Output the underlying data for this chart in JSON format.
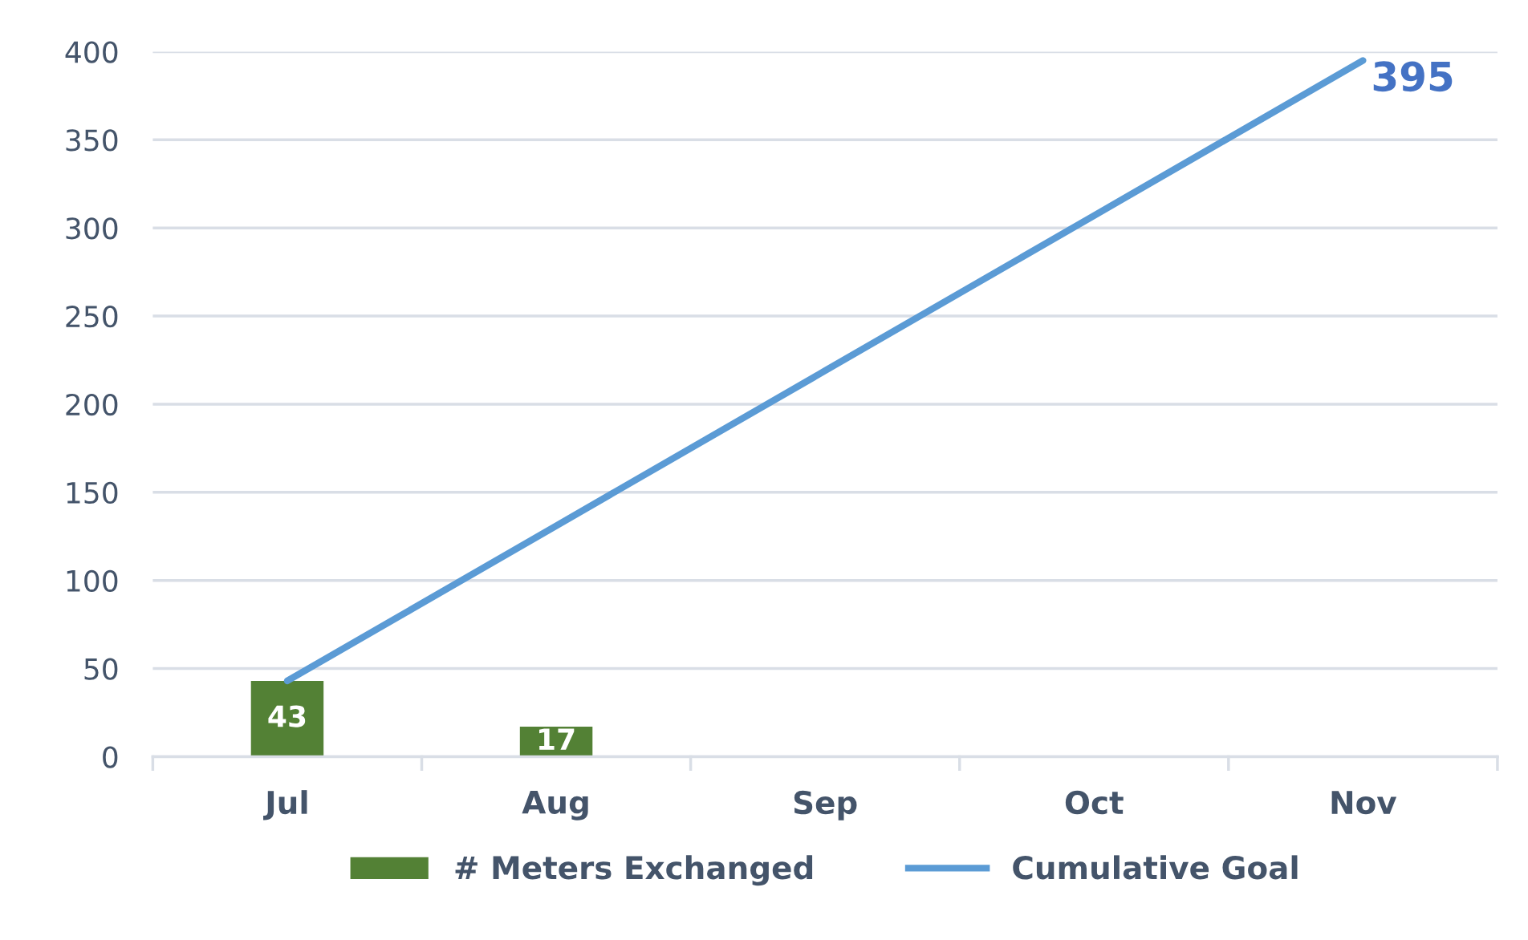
{
  "chart_data": {
    "type": "bar",
    "categories": [
      "Jul",
      "Aug",
      "Sep",
      "Oct",
      "Nov"
    ],
    "series": [
      {
        "name": "# Meters Exchanged",
        "color": "#538135",
        "values": [
          43,
          17,
          null,
          null,
          null
        ],
        "value_labels": [
          "43",
          "17",
          null,
          null,
          null
        ]
      },
      {
        "name": "Cumulative Goal",
        "type": "line",
        "color": "#5b9bd5",
        "values": [
          43,
          131,
          219,
          307,
          395
        ],
        "value_labels": [
          null,
          null,
          null,
          null,
          "395"
        ]
      }
    ],
    "ylim": [
      0,
      400
    ],
    "yticks": [
      0,
      50,
      100,
      150,
      200,
      250,
      300,
      350,
      400
    ],
    "grid": "y",
    "legend": "bottom",
    "marker": "none",
    "line_style": "solid"
  }
}
